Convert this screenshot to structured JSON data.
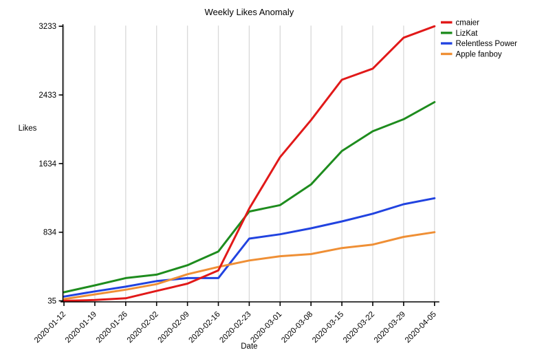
{
  "title": "Weekly Likes Anomaly",
  "chart_data": {
    "type": "line",
    "title": "Weekly Likes Anomaly",
    "xlabel": "Date",
    "ylabel": "Likes",
    "x": [
      "2020-01-12",
      "2020-01-19",
      "2020-01-26",
      "2020-02-02",
      "2020-02-09",
      "2020-02-16",
      "2020-02-23",
      "2020-03-01",
      "2020-03-08",
      "2020-03-15",
      "2020-03-22",
      "2020-03-29",
      "2020-04-05"
    ],
    "yticks": [
      35,
      834,
      1634,
      2433,
      3233
    ],
    "ylim": [
      35,
      3233
    ],
    "grid": "vertical-only",
    "grid_color": "#d8d8d8",
    "axis_color": "#000000",
    "legend_position": "top-right",
    "series": [
      {
        "name": "cmaier",
        "color": "#e11919",
        "values": [
          35,
          45,
          65,
          150,
          235,
          390,
          1110,
          1710,
          2140,
          2610,
          2740,
          3100,
          3233
        ]
      },
      {
        "name": "LizKat",
        "color": "#1e8c1e",
        "values": [
          135,
          215,
          300,
          340,
          450,
          610,
          1075,
          1150,
          1390,
          1780,
          2010,
          2150,
          2350
        ]
      },
      {
        "name": "Relentless Power",
        "color": "#2143e0",
        "values": [
          85,
          145,
          200,
          265,
          300,
          300,
          760,
          810,
          880,
          960,
          1050,
          1160,
          1230
        ]
      },
      {
        "name": "Apple fanboy",
        "color": "#ef8f35",
        "values": [
          55,
          110,
          165,
          230,
          345,
          430,
          505,
          555,
          580,
          650,
          690,
          780,
          834
        ]
      }
    ]
  }
}
